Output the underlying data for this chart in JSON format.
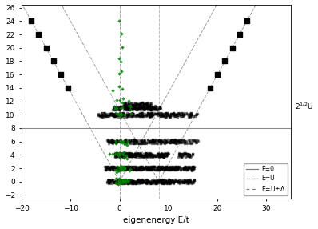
{
  "xlim": [
    -20,
    35
  ],
  "ylim": [
    -2.5,
    26.5
  ],
  "xlabel": "eigenenergy E/t",
  "yticks": [
    -2,
    0,
    2,
    4,
    6,
    8,
    10,
    12,
    14,
    16,
    18,
    20,
    22,
    24,
    26
  ],
  "xticks": [
    -20,
    -10,
    0,
    10,
    20,
    30
  ],
  "U": 8.0,
  "Delta": 3.5,
  "sqrt2U_y": 11.31,
  "bg_color": "#ffffff",
  "plot_bg": "#ffffff",
  "slope": 1.333,
  "seed": 12345
}
